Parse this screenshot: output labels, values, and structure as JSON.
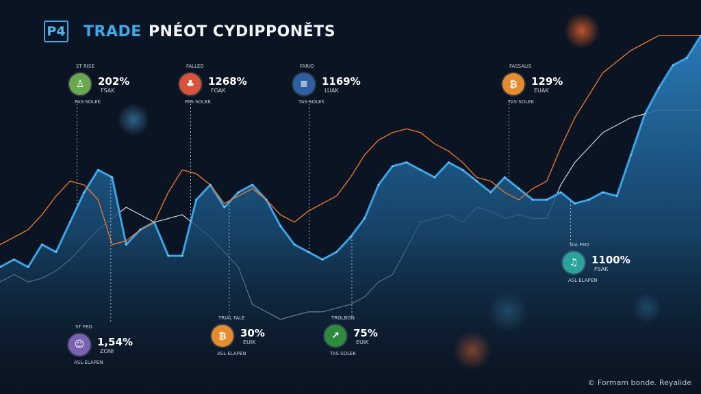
{
  "header": {
    "logo_text": "P4",
    "title_accent": "TRADE",
    "title_rest": "PNÉOT CYDIPPONĚTS"
  },
  "footer": {
    "text": "© Formam bonde. Reyalide"
  },
  "colors": {
    "background": "#0b1422",
    "area_fill": "#1d5a86",
    "area_edge": "#3aa4e8",
    "orange_line": "#e8732f",
    "white_line": "#e6edf4"
  },
  "callouts": [
    {
      "id": "c1",
      "top": "ST RISE",
      "pct": "202%",
      "unit": "FSAK",
      "bottom": "PAS·SOLEK",
      "color": "#6aa84f",
      "icon": "person-icon",
      "glyph": "♙"
    },
    {
      "id": "c2",
      "top": "FALLED",
      "pct": "1268%",
      "unit": "FOAK",
      "bottom": "PAS·SOLEK",
      "color": "#d9533b",
      "icon": "tree-icon",
      "glyph": "♣"
    },
    {
      "id": "c3",
      "top": "FARIO",
      "pct": "1169%",
      "unit": "LUAK",
      "bottom": "TAS·SOLEK",
      "color": "#2c5fa3",
      "icon": "coin-stack-icon",
      "glyph": "≡"
    },
    {
      "id": "c4",
      "top": "FASSALIS",
      "pct": "129%",
      "unit": "EUAK",
      "bottom": "TAS·SOLEK",
      "color": "#e68a2e",
      "icon": "bitcoin-icon",
      "glyph": "₿"
    },
    {
      "id": "c5",
      "top": "NIA FEO",
      "pct": "1100%",
      "unit": "FSAK",
      "bottom": "ASL·ELAPEN",
      "color": "#2aa39a",
      "icon": "note-icon",
      "glyph": "♫"
    },
    {
      "id": "c6",
      "top": "ST FEO",
      "pct": "1,54%",
      "unit": "ZONI",
      "bottom": "ASL·ELAPEN",
      "color": "#7b62b3",
      "icon": "robot-icon",
      "glyph": "☺"
    },
    {
      "id": "c7",
      "top": "TRIAL FALE",
      "pct": "30%",
      "unit": "EUIK",
      "bottom": "ASL·ELAPEN",
      "color": "#e88b2a",
      "icon": "bitcoin-icon",
      "glyph": "₿"
    },
    {
      "id": "c8",
      "top": "TROLBON",
      "pct": "75%",
      "unit": "EUIK",
      "bottom": "TAS·SOLEK",
      "color": "#2e8b3e",
      "icon": "chart-icon",
      "glyph": "↗"
    }
  ],
  "chart_data": {
    "type": "area",
    "title": "TRADE PNÉOT CYDIPPONĚTS",
    "xlabel": "",
    "ylabel": "",
    "grid": false,
    "xlim": [
      0,
      100
    ],
    "ylim": [
      0,
      100
    ],
    "x": [
      0,
      2,
      4,
      6,
      8,
      10,
      12,
      14,
      16,
      18,
      20,
      22,
      24,
      26,
      28,
      30,
      32,
      34,
      36,
      38,
      40,
      42,
      44,
      46,
      48,
      50,
      52,
      54,
      56,
      58,
      60,
      62,
      64,
      66,
      68,
      70,
      72,
      74,
      76,
      78,
      80,
      82,
      84,
      86,
      88,
      90,
      92,
      94,
      96,
      98,
      100
    ],
    "series": [
      {
        "values": [
          34,
          36,
          34,
          40,
          38,
          46,
          54,
          60,
          58,
          40,
          44,
          46,
          37,
          37,
          52,
          56,
          50,
          54,
          56,
          52,
          45,
          40,
          38,
          36,
          38,
          42,
          47,
          56,
          61,
          62,
          60,
          58,
          62,
          60,
          57,
          54,
          58,
          55,
          52,
          52,
          54,
          51,
          52,
          54,
          53,
          64,
          75,
          82,
          88,
          90,
          96
        ]
      },
      {
        "values": [
          40,
          42,
          44,
          48,
          53,
          57,
          56,
          52,
          40,
          41,
          44,
          46,
          54,
          60,
          59,
          56,
          51,
          53,
          55,
          52,
          48,
          46,
          49,
          51,
          53,
          58,
          64,
          68,
          70,
          71,
          70,
          67,
          65,
          62,
          58,
          57,
          54,
          52,
          55,
          57,
          66,
          74,
          80,
          86,
          89,
          92,
          94,
          96,
          96,
          96,
          96
        ]
      },
      {
        "values": [
          30,
          32,
          30,
          31,
          33,
          36,
          40,
          44,
          47,
          50,
          48,
          46,
          47,
          48,
          45,
          42,
          38,
          34,
          24,
          22,
          20,
          21,
          22,
          22,
          23,
          24,
          26,
          30,
          32,
          39,
          46,
          47,
          48,
          46,
          50,
          49,
          47,
          48,
          47,
          47,
          56,
          62,
          66,
          70,
          72,
          74,
          75,
          76,
          76,
          76,
          76
        ]
      }
    ],
    "annotations": [
      {
        "x": 11.0,
        "label": "202%"
      },
      {
        "x": 27.2,
        "label": "1268%"
      },
      {
        "x": 44.1,
        "label": "1169%"
      },
      {
        "x": 72.6,
        "label": "129%"
      },
      {
        "x": 81.4,
        "label": "1100%"
      },
      {
        "x": 15.8,
        "label": "1,54%"
      },
      {
        "x": 32.7,
        "label": "30%"
      },
      {
        "x": 50.2,
        "label": "75%"
      }
    ]
  }
}
